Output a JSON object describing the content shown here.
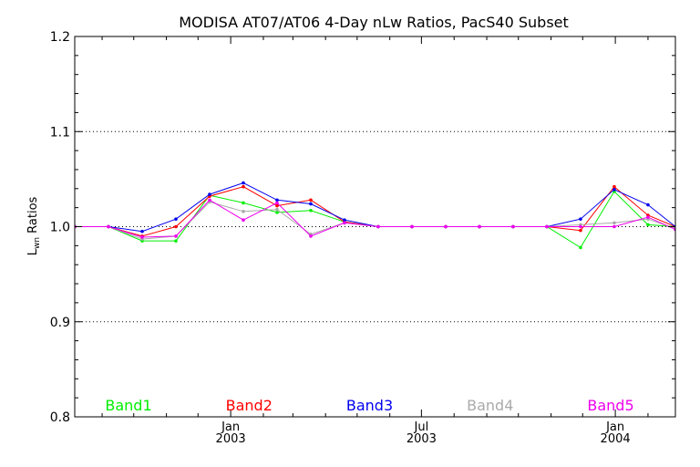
{
  "chart_data": {
    "type": "line",
    "title": "MODISA AT07/AT06 4-Day nLw Ratios, PacS40 Subset",
    "ylabel_main": "L",
    "ylabel_sub": "wn",
    "ylabel_rest": " Ratios",
    "ylim": [
      0.8,
      1.2
    ],
    "yticks": [
      "0.8",
      "0.9",
      "1.0",
      "1.1",
      "1.2"
    ],
    "ytick_values": [
      0.8,
      0.9,
      1.0,
      1.1,
      1.2
    ],
    "xlim": [
      "2002-08-06",
      "2004-02-27"
    ],
    "xticks": [
      {
        "date": "2003-01-01",
        "month": "Jan",
        "year": "2003"
      },
      {
        "date": "2003-07-01",
        "month": "Jul",
        "year": "2003"
      },
      {
        "date": "2004-01-01",
        "month": "Jan",
        "year": "2004"
      }
    ],
    "grid": "dotted horizontal at 0.9, 1.0, 1.1",
    "x": [
      "2002-08-06",
      "2002-09-07",
      "2002-10-09",
      "2002-11-10",
      "2002-12-12",
      "2003-01-13",
      "2003-02-14",
      "2003-03-18",
      "2003-04-19",
      "2003-05-21",
      "2003-06-22",
      "2003-07-24",
      "2003-08-25",
      "2003-09-26",
      "2003-10-28",
      "2003-11-29",
      "2003-12-31",
      "2004-02-01",
      "2004-02-27"
    ],
    "series": [
      {
        "name": "Band1",
        "color": "#00ee00",
        "values": [
          1.0,
          1.0,
          0.985,
          0.985,
          1.033,
          1.025,
          1.015,
          1.017,
          1.005,
          1.0,
          1.0,
          1.0,
          1.0,
          1.0,
          1.0,
          0.978,
          1.037,
          1.002,
          1.0
        ]
      },
      {
        "name": "Band2",
        "color": "#ff0000",
        "values": [
          1.0,
          1.0,
          0.99,
          1.0,
          1.032,
          1.042,
          1.022,
          1.028,
          1.005,
          1.0,
          1.0,
          1.0,
          1.0,
          1.0,
          1.0,
          0.996,
          1.042,
          1.012,
          1.0
        ]
      },
      {
        "name": "Band3",
        "color": "#0000ee",
        "values": [
          1.0,
          1.0,
          0.995,
          1.008,
          1.034,
          1.046,
          1.028,
          1.024,
          1.007,
          1.0,
          1.0,
          1.0,
          1.0,
          1.0,
          1.0,
          1.008,
          1.039,
          1.023,
          1.0
        ]
      },
      {
        "name": "Band4",
        "color": "#aaaaaa",
        "values": [
          1.0,
          1.0,
          0.987,
          0.99,
          1.026,
          1.016,
          1.018,
          0.992,
          1.004,
          1.0,
          1.0,
          1.0,
          1.0,
          1.0,
          1.0,
          1.002,
          1.004,
          1.008,
          0.998
        ]
      },
      {
        "name": "Band5",
        "color": "#ee00ee",
        "values": [
          1.0,
          1.0,
          0.989,
          0.99,
          1.028,
          1.007,
          1.025,
          0.99,
          1.004,
          1.0,
          1.0,
          1.0,
          1.0,
          1.0,
          1.0,
          1.0,
          1.0,
          1.01,
          0.997
        ]
      }
    ],
    "legend_placement": "bottom inside plot, horizontal row"
  }
}
